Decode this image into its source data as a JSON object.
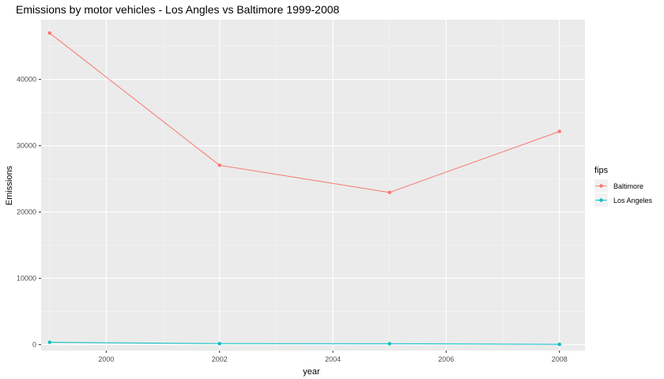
{
  "chart_data": {
    "type": "line",
    "title": "Emissions by motor vehicles - Los Angles vs Baltimore 1999-2008",
    "xlabel": "year",
    "ylabel": "Emissions",
    "x": [
      1999,
      2002,
      2005,
      2008
    ],
    "xlim": [
      1998.85,
      2008.45
    ],
    "ylim": [
      -900,
      49000
    ],
    "x_ticks": [
      2000,
      2002,
      2004,
      2006,
      2008
    ],
    "y_ticks": [
      0,
      10000,
      20000,
      30000,
      40000
    ],
    "grid": true,
    "legend": {
      "title": "fips",
      "position": "right"
    },
    "series": [
      {
        "name": "Baltimore",
        "color": "#F8766D",
        "values": [
          47000,
          27050,
          22950,
          32150
        ]
      },
      {
        "name": "Los Angeles",
        "color": "#00BFC4",
        "values": [
          350,
          150,
          130,
          40
        ]
      }
    ]
  }
}
